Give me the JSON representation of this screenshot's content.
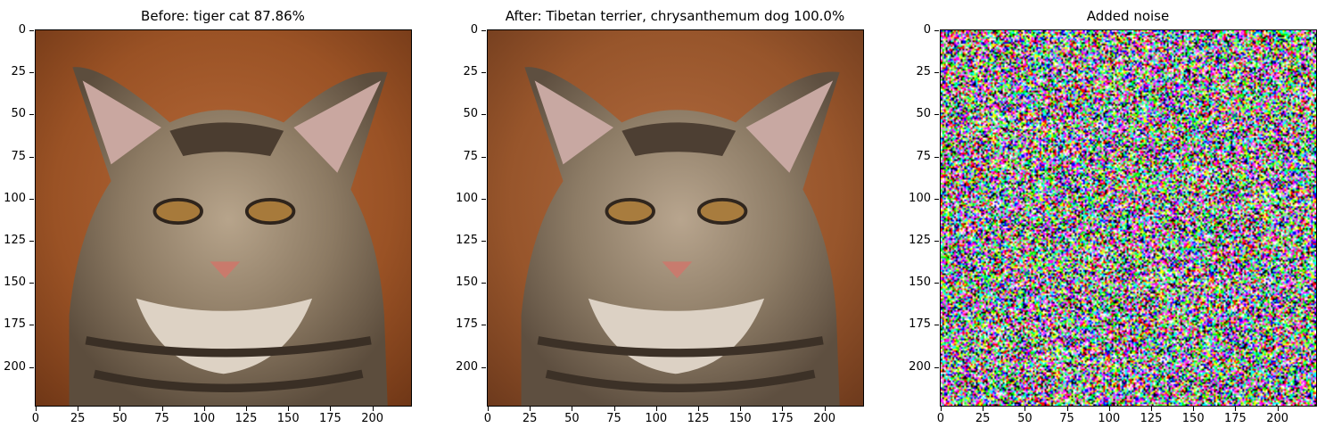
{
  "panels": [
    {
      "id": "before",
      "title": "Before: tiger cat 87.86%",
      "image": "cat-photo"
    },
    {
      "id": "after",
      "title": "After: Tibetan terrier, chrysanthemum dog 100.0%",
      "image": "cat-photo-perturbed"
    },
    {
      "id": "noise",
      "title": "Added noise",
      "image": "random-color-noise"
    }
  ],
  "axes": {
    "y_ticks": [
      "0",
      "25",
      "50",
      "75",
      "100",
      "125",
      "150",
      "175",
      "200"
    ],
    "x_ticks": [
      "0",
      "25",
      "50",
      "75",
      "100",
      "125",
      "150",
      "175",
      "200"
    ],
    "range": [
      0,
      224
    ]
  }
}
